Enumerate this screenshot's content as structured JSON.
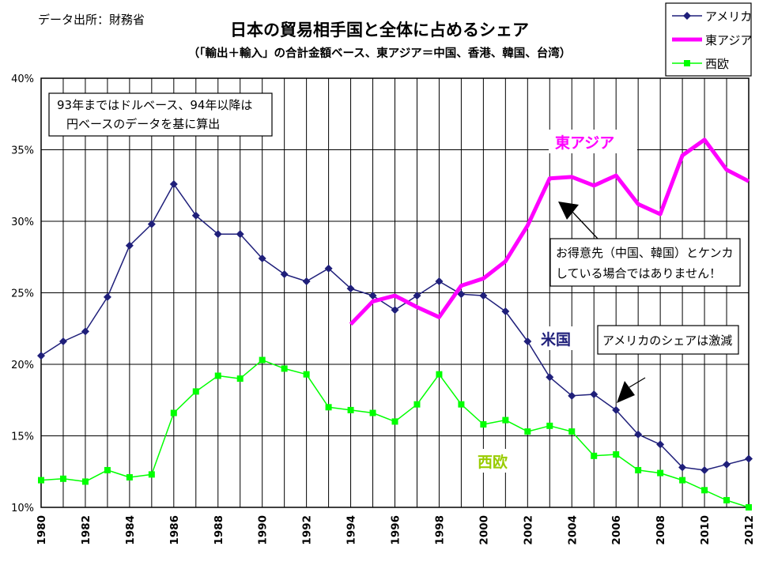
{
  "source": "データ出所：財務省",
  "chart_data": {
    "type": "line",
    "title": "日本の貿易相手国と全体に占めるシェア",
    "subtitle": "（「輸出＋輸入」の合計金額ベース、東アジア＝中国、香港、韓国、台湾）",
    "xlabel": "",
    "ylabel": "",
    "ylim": [
      0.1,
      0.4
    ],
    "xlim": [
      1980,
      2012
    ],
    "y_ticks": [
      "10%",
      "15%",
      "20%",
      "25%",
      "30%",
      "35%",
      "40%"
    ],
    "y_tick_values": [
      0.1,
      0.15,
      0.2,
      0.25,
      0.3,
      0.35,
      0.4
    ],
    "x_ticks": [
      "1980",
      "1982",
      "1984",
      "1986",
      "1988",
      "1990",
      "1992",
      "1994",
      "1996",
      "1998",
      "2000",
      "2002",
      "2004",
      "2006",
      "2008",
      "2010",
      "2012"
    ],
    "grid": true,
    "legend_position": "top-right",
    "series": [
      {
        "name": "アメリカ",
        "color": "#1f1f7a",
        "marker": "diamond",
        "x": [
          1980,
          1981,
          1982,
          1983,
          1984,
          1985,
          1986,
          1987,
          1988,
          1989,
          1990,
          1991,
          1992,
          1993,
          1994,
          1995,
          1996,
          1997,
          1998,
          1999,
          2000,
          2001,
          2002,
          2003,
          2004,
          2005,
          2006,
          2007,
          2008,
          2009,
          2010,
          2011,
          2012
        ],
        "values": [
          0.206,
          0.216,
          0.223,
          0.247,
          0.283,
          0.298,
          0.326,
          0.304,
          0.291,
          0.291,
          0.274,
          0.263,
          0.258,
          0.267,
          0.253,
          0.248,
          0.238,
          0.248,
          0.258,
          0.249,
          0.248,
          0.237,
          0.216,
          0.191,
          0.178,
          0.179,
          0.168,
          0.151,
          0.144,
          0.128,
          0.126,
          0.13,
          0.134
        ]
      },
      {
        "name": "東アジア",
        "color": "#ff00ff",
        "marker": "none",
        "x": [
          1994,
          1995,
          1996,
          1997,
          1998,
          1999,
          2000,
          2001,
          2002,
          2003,
          2004,
          2005,
          2006,
          2007,
          2008,
          2009,
          2010,
          2011,
          2012
        ],
        "values": [
          0.228,
          0.244,
          0.248,
          0.24,
          0.233,
          0.255,
          0.26,
          0.272,
          0.297,
          0.33,
          0.331,
          0.325,
          0.332,
          0.312,
          0.305,
          0.346,
          0.357,
          0.336,
          0.328
        ]
      },
      {
        "name": "西欧",
        "color": "#00ff00",
        "marker": "square",
        "x": [
          1980,
          1981,
          1982,
          1983,
          1984,
          1985,
          1986,
          1987,
          1988,
          1989,
          1990,
          1991,
          1992,
          1993,
          1994,
          1995,
          1996,
          1997,
          1998,
          1999,
          2000,
          2001,
          2002,
          2003,
          2004,
          2005,
          2006,
          2007,
          2008,
          2009,
          2010,
          2011,
          2012
        ],
        "values": [
          0.119,
          0.12,
          0.118,
          0.126,
          0.121,
          0.123,
          0.166,
          0.181,
          0.192,
          0.19,
          0.203,
          0.197,
          0.193,
          0.17,
          0.168,
          0.166,
          0.16,
          0.172,
          0.193,
          0.172,
          0.158,
          0.161,
          0.153,
          0.157,
          0.153,
          0.136,
          0.137,
          0.126,
          0.124,
          0.119,
          0.112,
          0.105,
          0.1
        ]
      }
    ],
    "annotations": {
      "note_box": [
        "93年まではドルベース、94年以降は",
        "円ベースのデータを基に算出"
      ],
      "label_east_asia": "東アジア",
      "label_us": "米国",
      "label_west_europe": "西欧",
      "callout_east_asia": [
        "お得意先（中国、韓国）とケンカ",
        "している場合ではありません！"
      ],
      "callout_us": "アメリカのシェアは激減"
    }
  }
}
